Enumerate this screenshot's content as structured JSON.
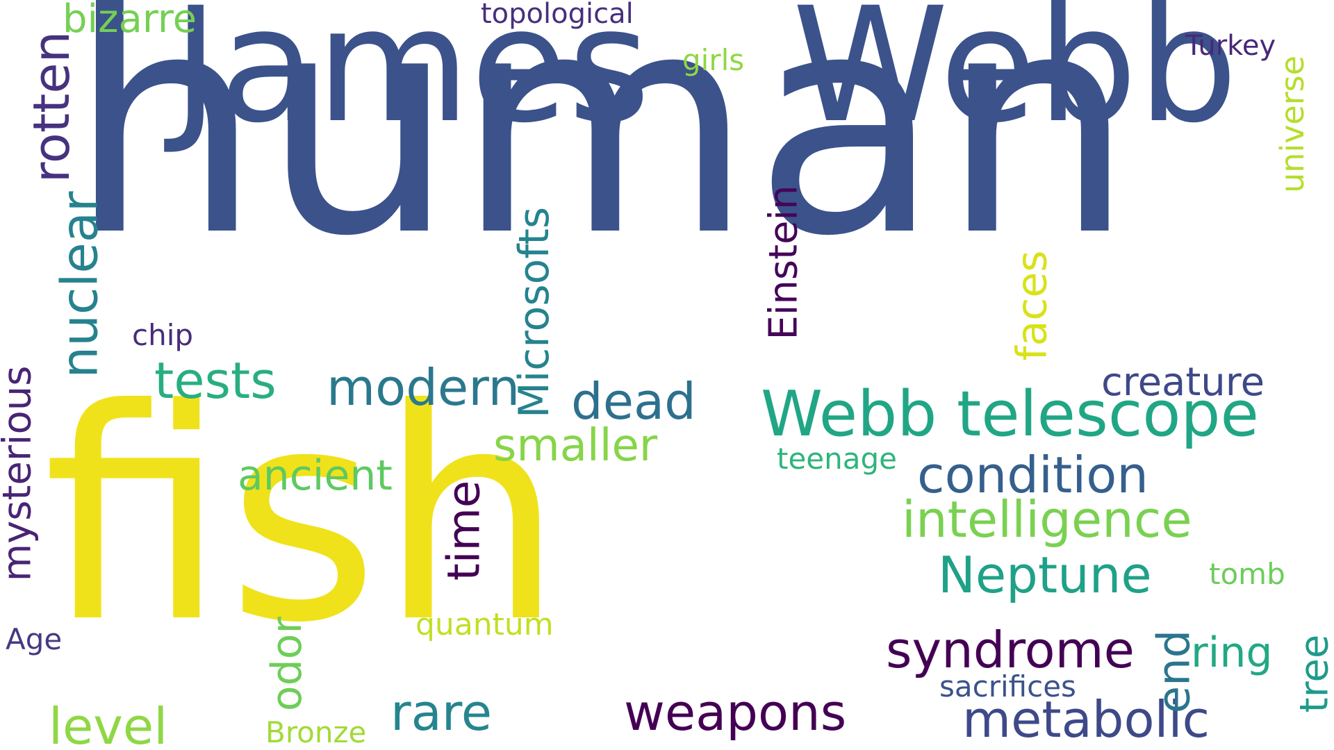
{
  "words": [
    {
      "text": "human",
      "color": "#3b528b"
    },
    {
      "text": "fish",
      "color": "#f0e21a"
    },
    {
      "text": "James",
      "color": "#3b528b"
    },
    {
      "text": "Webb",
      "color": "#3b528b"
    },
    {
      "text": "Webb telescope",
      "color": "#21a685"
    },
    {
      "text": "condition",
      "color": "#355f8d"
    },
    {
      "text": "intelligence",
      "color": "#7ad151"
    },
    {
      "text": "Neptune",
      "color": "#1fa187"
    },
    {
      "text": "syndrome",
      "color": "#440154"
    },
    {
      "text": "metabolic",
      "color": "#3e4989"
    },
    {
      "text": "weapons",
      "color": "#440154"
    },
    {
      "text": "creature",
      "color": "#3e4989"
    },
    {
      "text": "modern",
      "color": "#2a788e"
    },
    {
      "text": "tests",
      "color": "#28ae80"
    },
    {
      "text": "dead",
      "color": "#2d708e"
    },
    {
      "text": "smaller",
      "color": "#86d549"
    },
    {
      "text": "ancient",
      "color": "#5ec962"
    },
    {
      "text": "rare",
      "color": "#25858e"
    },
    {
      "text": "level",
      "color": "#8fd744"
    },
    {
      "text": "bizarre",
      "color": "#75d054"
    },
    {
      "text": "topological",
      "color": "#472f7d"
    },
    {
      "text": "girls",
      "color": "#90d743"
    },
    {
      "text": "Turkey",
      "color": "#482878"
    },
    {
      "text": "chip",
      "color": "#472c7a"
    },
    {
      "text": "teenage",
      "color": "#2fb47c"
    },
    {
      "text": "tomb",
      "color": "#6ccd5a"
    },
    {
      "text": "ring",
      "color": "#22a884"
    },
    {
      "text": "sacrifices",
      "color": "#3b528b"
    },
    {
      "text": "quantum",
      "color": "#c2df23"
    },
    {
      "text": "Age",
      "color": "#443a83"
    },
    {
      "text": "Bronze",
      "color": "#a2da37"
    },
    {
      "text": "rotten",
      "color": "#46327e"
    },
    {
      "text": "nuclear",
      "color": "#26828e"
    },
    {
      "text": "mysterious",
      "color": "#482475"
    },
    {
      "text": "Microsofts",
      "color": "#25838e"
    },
    {
      "text": "Einstein",
      "color": "#450559"
    },
    {
      "text": "faces",
      "color": "#d8e219"
    },
    {
      "text": "universe",
      "color": "#b5de2b"
    },
    {
      "text": "time",
      "color": "#440154"
    },
    {
      "text": "odor",
      "color": "#6ece58"
    },
    {
      "text": "end",
      "color": "#2b758e"
    },
    {
      "text": "tree",
      "color": "#1e9b8a"
    }
  ]
}
